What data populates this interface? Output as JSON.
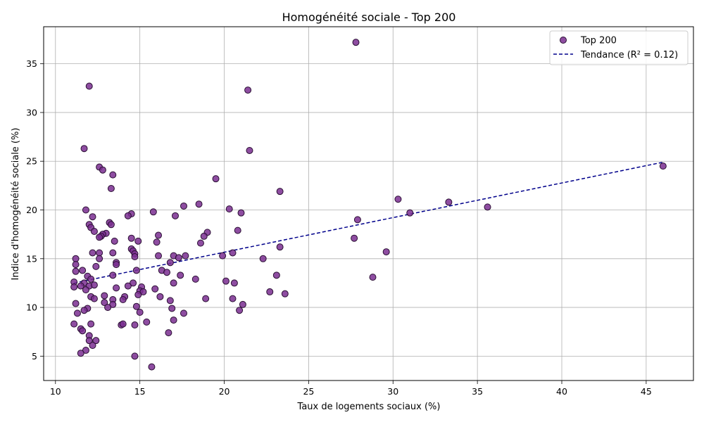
{
  "chart_data": {
    "type": "scatter",
    "title": "Homogénéité sociale - Top 200",
    "xlabel": "Taux de logements sociaux (%)",
    "ylabel": "Indice d'homogénéité sociale (%)",
    "xlim": [
      9.3,
      47.8
    ],
    "ylim": [
      2.5,
      38.8
    ],
    "xticks": [
      10,
      15,
      20,
      25,
      30,
      35,
      40,
      45
    ],
    "yticks": [
      5,
      10,
      15,
      20,
      25,
      30,
      35
    ],
    "grid": true,
    "legend_position": "top-right",
    "colors": {
      "points": "#7a2e91",
      "point_edge": "#2a0f33",
      "trend": "#00008b",
      "grid": "#b0b0b0"
    },
    "series": [
      {
        "name": "Top 200",
        "kind": "scatter",
        "points": [
          [
            27.8,
            37.2
          ],
          [
            12.0,
            32.7
          ],
          [
            21.4,
            32.3
          ],
          [
            11.7,
            26.3
          ],
          [
            21.5,
            26.1
          ],
          [
            12.6,
            24.4
          ],
          [
            12.8,
            24.1
          ],
          [
            13.4,
            23.6
          ],
          [
            19.5,
            23.2
          ],
          [
            13.3,
            22.2
          ],
          [
            23.3,
            21.9
          ],
          [
            30.3,
            21.1
          ],
          [
            33.3,
            20.8
          ],
          [
            18.5,
            20.6
          ],
          [
            17.6,
            20.4
          ],
          [
            35.6,
            20.3
          ],
          [
            20.3,
            20.1
          ],
          [
            11.8,
            20.0
          ],
          [
            15.8,
            19.8
          ],
          [
            21.0,
            19.7
          ],
          [
            31.0,
            19.7
          ],
          [
            14.5,
            19.6
          ],
          [
            14.3,
            19.4
          ],
          [
            12.2,
            19.3
          ],
          [
            17.1,
            19.4
          ],
          [
            27.9,
            19.0
          ],
          [
            13.2,
            18.7
          ],
          [
            12.0,
            18.5
          ],
          [
            13.3,
            18.5
          ],
          [
            12.1,
            18.2
          ],
          [
            12.3,
            17.8
          ],
          [
            19.0,
            17.7
          ],
          [
            20.8,
            17.9
          ],
          [
            13.0,
            17.6
          ],
          [
            12.8,
            17.5
          ],
          [
            12.7,
            17.3
          ],
          [
            16.1,
            17.4
          ],
          [
            18.8,
            17.3
          ],
          [
            27.7,
            17.1
          ],
          [
            14.5,
            17.1
          ],
          [
            12.6,
            17.2
          ],
          [
            14.9,
            16.8
          ],
          [
            13.5,
            16.8
          ],
          [
            16.0,
            16.7
          ],
          [
            18.6,
            16.6
          ],
          [
            23.3,
            16.2
          ],
          [
            14.5,
            16.0
          ],
          [
            14.6,
            15.8
          ],
          [
            14.7,
            15.5
          ],
          [
            12.2,
            15.6
          ],
          [
            12.6,
            15.6
          ],
          [
            13.4,
            15.6
          ],
          [
            20.5,
            15.6
          ],
          [
            29.6,
            15.7
          ],
          [
            14.7,
            15.2
          ],
          [
            16.1,
            15.3
          ],
          [
            17.0,
            15.3
          ],
          [
            17.7,
            15.3
          ],
          [
            19.9,
            15.3
          ],
          [
            11.2,
            15.0
          ],
          [
            12.6,
            15.0
          ],
          [
            17.3,
            15.1
          ],
          [
            22.3,
            15.0
          ],
          [
            13.6,
            14.6
          ],
          [
            11.2,
            14.4
          ],
          [
            16.8,
            14.6
          ],
          [
            13.6,
            14.4
          ],
          [
            12.4,
            14.2
          ],
          [
            11.6,
            13.8
          ],
          [
            11.2,
            13.7
          ],
          [
            14.8,
            13.8
          ],
          [
            16.3,
            13.8
          ],
          [
            16.6,
            13.6
          ],
          [
            13.4,
            13.3
          ],
          [
            11.9,
            13.2
          ],
          [
            17.4,
            13.3
          ],
          [
            23.1,
            13.3
          ],
          [
            28.8,
            13.1
          ],
          [
            12.1,
            12.9
          ],
          [
            18.3,
            12.9
          ],
          [
            11.1,
            12.6
          ],
          [
            11.7,
            12.5
          ],
          [
            14.6,
            12.5
          ],
          [
            17.0,
            12.5
          ],
          [
            20.1,
            12.7
          ],
          [
            20.6,
            12.5
          ],
          [
            11.1,
            12.1
          ],
          [
            11.5,
            12.2
          ],
          [
            12.0,
            12.2
          ],
          [
            12.3,
            12.3
          ],
          [
            13.6,
            12.0
          ],
          [
            14.3,
            12.2
          ],
          [
            15.1,
            12.1
          ],
          [
            15.9,
            11.9
          ],
          [
            11.8,
            11.8
          ],
          [
            15.0,
            11.7
          ],
          [
            15.2,
            11.6
          ],
          [
            22.7,
            11.6
          ],
          [
            23.6,
            11.4
          ],
          [
            14.9,
            11.3
          ],
          [
            12.1,
            11.1
          ],
          [
            12.9,
            11.2
          ],
          [
            14.1,
            11.1
          ],
          [
            16.2,
            11.1
          ],
          [
            18.9,
            10.9
          ],
          [
            20.5,
            10.9
          ],
          [
            12.3,
            10.9
          ],
          [
            13.4,
            10.8
          ],
          [
            14.0,
            10.8
          ],
          [
            16.8,
            10.7
          ],
          [
            11.2,
            10.4
          ],
          [
            12.9,
            10.5
          ],
          [
            13.4,
            10.3
          ],
          [
            21.1,
            10.3
          ],
          [
            14.8,
            10.1
          ],
          [
            13.1,
            10.0
          ],
          [
            11.9,
            9.9
          ],
          [
            16.9,
            9.9
          ],
          [
            11.7,
            9.7
          ],
          [
            20.9,
            9.7
          ],
          [
            15.0,
            9.5
          ],
          [
            11.3,
            9.4
          ],
          [
            17.6,
            9.4
          ],
          [
            17.0,
            8.7
          ],
          [
            15.4,
            8.5
          ],
          [
            11.1,
            8.3
          ],
          [
            12.1,
            8.3
          ],
          [
            13.9,
            8.2
          ],
          [
            14.0,
            8.3
          ],
          [
            14.7,
            8.2
          ],
          [
            11.5,
            7.8
          ],
          [
            11.6,
            7.6
          ],
          [
            16.7,
            7.4
          ],
          [
            12.0,
            7.1
          ],
          [
            12.0,
            6.6
          ],
          [
            12.4,
            6.6
          ],
          [
            12.2,
            6.1
          ],
          [
            11.8,
            5.6
          ],
          [
            11.5,
            5.3
          ],
          [
            14.7,
            5.0
          ],
          [
            15.7,
            3.9
          ],
          [
            46.0,
            24.5
          ]
        ]
      },
      {
        "name": "Tendance (R² = 0.12)",
        "kind": "line",
        "style": "dashed",
        "points": [
          [
            11.1,
            12.5
          ],
          [
            46.0,
            24.9
          ]
        ]
      }
    ]
  }
}
